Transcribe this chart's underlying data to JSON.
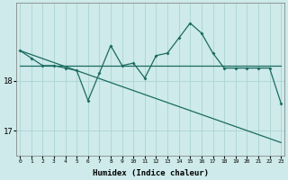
{
  "title": "",
  "xlabel": "Humidex (Indice chaleur)",
  "ylabel": "",
  "background_color": "#ceeaea",
  "grid_color": "#acd4d4",
  "line_color": "#1a6b60",
  "x": [
    0,
    1,
    2,
    3,
    4,
    5,
    6,
    7,
    8,
    9,
    10,
    11,
    12,
    13,
    14,
    15,
    16,
    17,
    18,
    19,
    20,
    21,
    22,
    23
  ],
  "y_main": [
    18.6,
    18.45,
    18.3,
    18.3,
    18.25,
    18.2,
    17.6,
    18.15,
    18.7,
    18.3,
    18.35,
    18.05,
    18.5,
    18.55,
    18.85,
    19.15,
    18.95,
    18.55,
    18.25,
    18.25,
    18.25,
    18.25,
    18.25,
    17.55
  ],
  "y_flat": [
    18.3,
    18.3,
    18.3,
    18.3,
    18.3,
    18.3,
    18.3,
    18.3,
    18.3,
    18.3,
    18.3,
    18.3,
    18.3,
    18.3,
    18.3,
    18.3,
    18.3,
    18.3,
    18.3,
    18.3,
    18.3,
    18.3,
    18.3,
    18.3
  ],
  "y_decline": [
    18.6,
    18.52,
    18.44,
    18.36,
    18.28,
    18.2,
    18.12,
    18.04,
    17.96,
    17.88,
    17.8,
    17.72,
    17.64,
    17.56,
    17.48,
    17.4,
    17.32,
    17.24,
    17.16,
    17.08,
    17.0,
    16.92,
    16.84,
    16.76
  ],
  "yticks": [
    17,
    18
  ],
  "ylim": [
    16.5,
    19.55
  ],
  "xlim": [
    -0.3,
    23.3
  ],
  "xticks": [
    0,
    1,
    2,
    3,
    4,
    5,
    6,
    7,
    8,
    9,
    10,
    11,
    12,
    13,
    14,
    15,
    16,
    17,
    18,
    19,
    20,
    21,
    22,
    23
  ]
}
